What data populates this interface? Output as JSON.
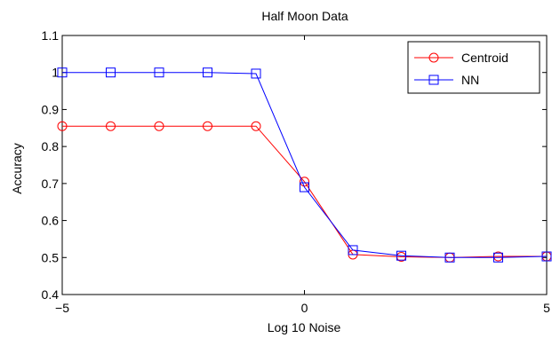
{
  "chart_data": {
    "type": "line",
    "title": "Half Moon Data",
    "xlabel": "Log 10 Noise",
    "ylabel": "Accuracy",
    "xlim": [
      -5,
      5
    ],
    "ylim": [
      0.4,
      1.1
    ],
    "xticks": [
      -5,
      0,
      5
    ],
    "xtick_labels": [
      "−5",
      "0",
      "5"
    ],
    "yticks": [
      0.4,
      0.5,
      0.6,
      0.7,
      0.8,
      0.9,
      1.0,
      1.1
    ],
    "ytick_labels": [
      "0.4",
      "0.5",
      "0.6",
      "0.7",
      "0.8",
      "0.9",
      "1",
      "1.1"
    ],
    "grid": false,
    "legend_position": "top-right",
    "x": [
      -5,
      -4,
      -3,
      -2,
      -1,
      0,
      1,
      2,
      3,
      4,
      5
    ],
    "series": [
      {
        "name": "Centroid",
        "color": "#ff0000",
        "marker": "circle",
        "values": [
          0.855,
          0.855,
          0.855,
          0.855,
          0.855,
          0.705,
          0.508,
          0.502,
          0.5,
          0.503,
          0.503
        ]
      },
      {
        "name": "NN",
        "color": "#0000ff",
        "marker": "square",
        "values": [
          1.0,
          1.0,
          1.0,
          1.0,
          0.997,
          0.69,
          0.52,
          0.505,
          0.5,
          0.5,
          0.503
        ]
      }
    ]
  }
}
